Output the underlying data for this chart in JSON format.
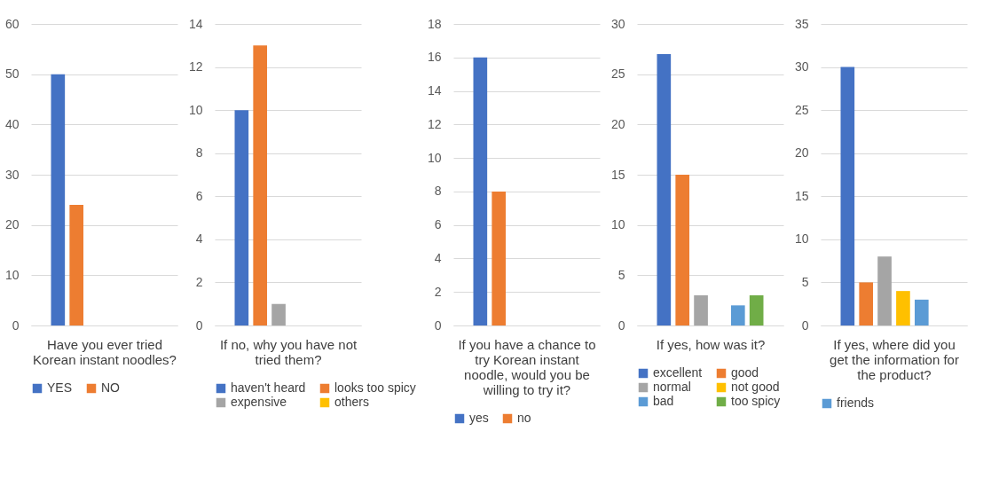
{
  "chart_data": [
    {
      "type": "bar",
      "xlabel": "Have you ever tried Korean instant noodles?",
      "categories": [
        null
      ],
      "series": [
        {
          "name": "YES",
          "color": "#4472c4",
          "values": [
            50
          ]
        },
        {
          "name": "NO",
          "color": "#ed7d31",
          "values": [
            24
          ]
        }
      ],
      "ylim": [
        0,
        60
      ],
      "yticks": [
        0,
        10,
        20,
        30,
        40,
        50,
        60
      ],
      "grid": "y",
      "legend": "bottom"
    },
    {
      "type": "bar",
      "xlabel": "If no, why you have not tried them?",
      "categories": [
        null
      ],
      "series": [
        {
          "name": "haven't heard",
          "color": "#4472c4",
          "values": [
            10
          ]
        },
        {
          "name": "looks too spicy",
          "color": "#ed7d31",
          "values": [
            13
          ]
        },
        {
          "name": "expensive",
          "color": "#a5a5a5",
          "values": [
            1
          ]
        },
        {
          "name": "others",
          "color": "#ffc000",
          "values": [
            0
          ]
        }
      ],
      "ylim": [
        0,
        14
      ],
      "yticks": [
        0,
        2,
        4,
        6,
        8,
        10,
        12,
        14
      ],
      "grid": "y",
      "legend": "bottom"
    },
    {
      "type": "bar",
      "xlabel": "If you have a chance to try Korean instant noodle, would you be willing to try it?",
      "categories": [
        null
      ],
      "series": [
        {
          "name": "yes",
          "color": "#4472c4",
          "values": [
            16
          ]
        },
        {
          "name": "no",
          "color": "#ed7d31",
          "values": [
            8
          ]
        }
      ],
      "ylim": [
        0,
        18
      ],
      "yticks": [
        0,
        2,
        4,
        6,
        8,
        10,
        12,
        14,
        16,
        18
      ],
      "grid": "y",
      "legend": "bottom"
    },
    {
      "type": "bar",
      "xlabel": "If yes, how was it?",
      "categories": [
        null
      ],
      "series": [
        {
          "name": "excellent",
          "color": "#4472c4",
          "values": [
            27
          ]
        },
        {
          "name": "good",
          "color": "#ed7d31",
          "values": [
            15
          ]
        },
        {
          "name": "normal",
          "color": "#a5a5a5",
          "values": [
            3
          ]
        },
        {
          "name": "not good",
          "color": "#ffc000",
          "values": [
            0
          ]
        },
        {
          "name": "bad",
          "color": "#5b9bd5",
          "values": [
            2
          ]
        },
        {
          "name": "too spicy",
          "color": "#70ad47",
          "values": [
            3
          ]
        }
      ],
      "ylim": [
        0,
        30
      ],
      "yticks": [
        0,
        5,
        10,
        15,
        20,
        25,
        30
      ],
      "grid": "y",
      "legend": "bottom"
    },
    {
      "type": "bar",
      "xlabel": "If yes, where did you get the information for the product?",
      "categories": [
        null
      ],
      "series": [
        {
          "color": "#4472c4",
          "values": [
            30
          ]
        },
        {
          "color": "#ed7d31",
          "values": [
            5
          ]
        },
        {
          "color": "#a5a5a5",
          "values": [
            8
          ]
        },
        {
          "color": "#ffc000",
          "values": [
            4
          ]
        },
        {
          "name": "friends",
          "color": "#5b9bd5",
          "values": [
            3
          ]
        }
      ],
      "ylim": [
        0,
        35
      ],
      "yticks": [
        0,
        5,
        10,
        15,
        20,
        25,
        30,
        35
      ],
      "grid": "y",
      "legend": "bottom"
    }
  ]
}
